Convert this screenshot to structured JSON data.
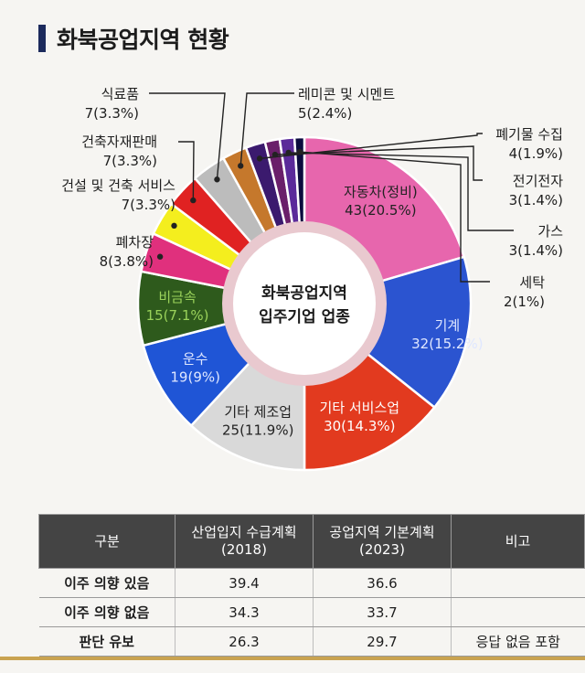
{
  "page": {
    "title": "화북공업지역 현황"
  },
  "chart_data": {
    "type": "pie",
    "center_label": [
      "화북공업지역",
      "입주기업 업종"
    ],
    "slices": [
      {
        "label": "자동차(정비)",
        "value_text": "43(20.5%)",
        "value": 43,
        "percent": 20.5,
        "color": "#e766ad"
      },
      {
        "label": "기계",
        "value_text": "32(15.2%)",
        "value": 32,
        "percent": 15.2,
        "color": "#2b54d0"
      },
      {
        "label": "기타 서비스업",
        "value_text": "30(14.3%)",
        "value": 30,
        "percent": 14.3,
        "color": "#e23a1f"
      },
      {
        "label": "기타 제조업",
        "value_text": "25(11.9%)",
        "value": 25,
        "percent": 11.9,
        "color": "#d9d9d9"
      },
      {
        "label": "운수",
        "value_text": "19(9%)",
        "value": 19,
        "percent": 9,
        "color": "#1f55d6"
      },
      {
        "label": "비금속",
        "value_text": "15(7.1%)",
        "value": 15,
        "percent": 7.1,
        "color": "#2e5a1c"
      },
      {
        "label": "폐차장",
        "value_text": "8(3.8%)",
        "value": 8,
        "percent": 3.8,
        "color": "#e0307d"
      },
      {
        "label": "건설 및 건축 서비스",
        "value_text": "7(3.3%)",
        "value": 7,
        "percent": 3.3,
        "color": "#f4ee1e"
      },
      {
        "label": "건축자재판매",
        "value_text": "7(3.3%)",
        "value": 7,
        "percent": 3.3,
        "color": "#e02222"
      },
      {
        "label": "식료품",
        "value_text": "7(3.3%)",
        "value": 7,
        "percent": 3.3,
        "color": "#bcbcbc"
      },
      {
        "label": "레미콘 및 시멘트",
        "value_text": "5(2.4%)",
        "value": 5,
        "percent": 2.4,
        "color": "#c5782c"
      },
      {
        "label": "폐기물 수집",
        "value_text": "4(1.9%)",
        "value": 4,
        "percent": 1.9,
        "color": "#3b1a6e"
      },
      {
        "label": "전기전자",
        "value_text": "3(1.4%)",
        "value": 3,
        "percent": 1.4,
        "color": "#6a1f6a"
      },
      {
        "label": "가스",
        "value_text": "3(1.4%)",
        "value": 3,
        "percent": 1.4,
        "color": "#5b2a9a"
      },
      {
        "label": "세탁",
        "value_text": "2(1%)",
        "value": 2,
        "percent": 1,
        "color": "#0b0b3d"
      }
    ]
  },
  "table": {
    "headers": [
      [
        "구분"
      ],
      [
        "산업입지 수급계획",
        "(2018)"
      ],
      [
        "공업지역 기본계획",
        "(2023)"
      ],
      [
        "비고"
      ]
    ],
    "rows": [
      [
        "이주 의향 있음",
        "39.4",
        "36.6",
        ""
      ],
      [
        "이주 의향 없음",
        "34.3",
        "33.7",
        ""
      ],
      [
        "판단 유보",
        "26.3",
        "29.7",
        "응답 없음 포함"
      ]
    ]
  }
}
